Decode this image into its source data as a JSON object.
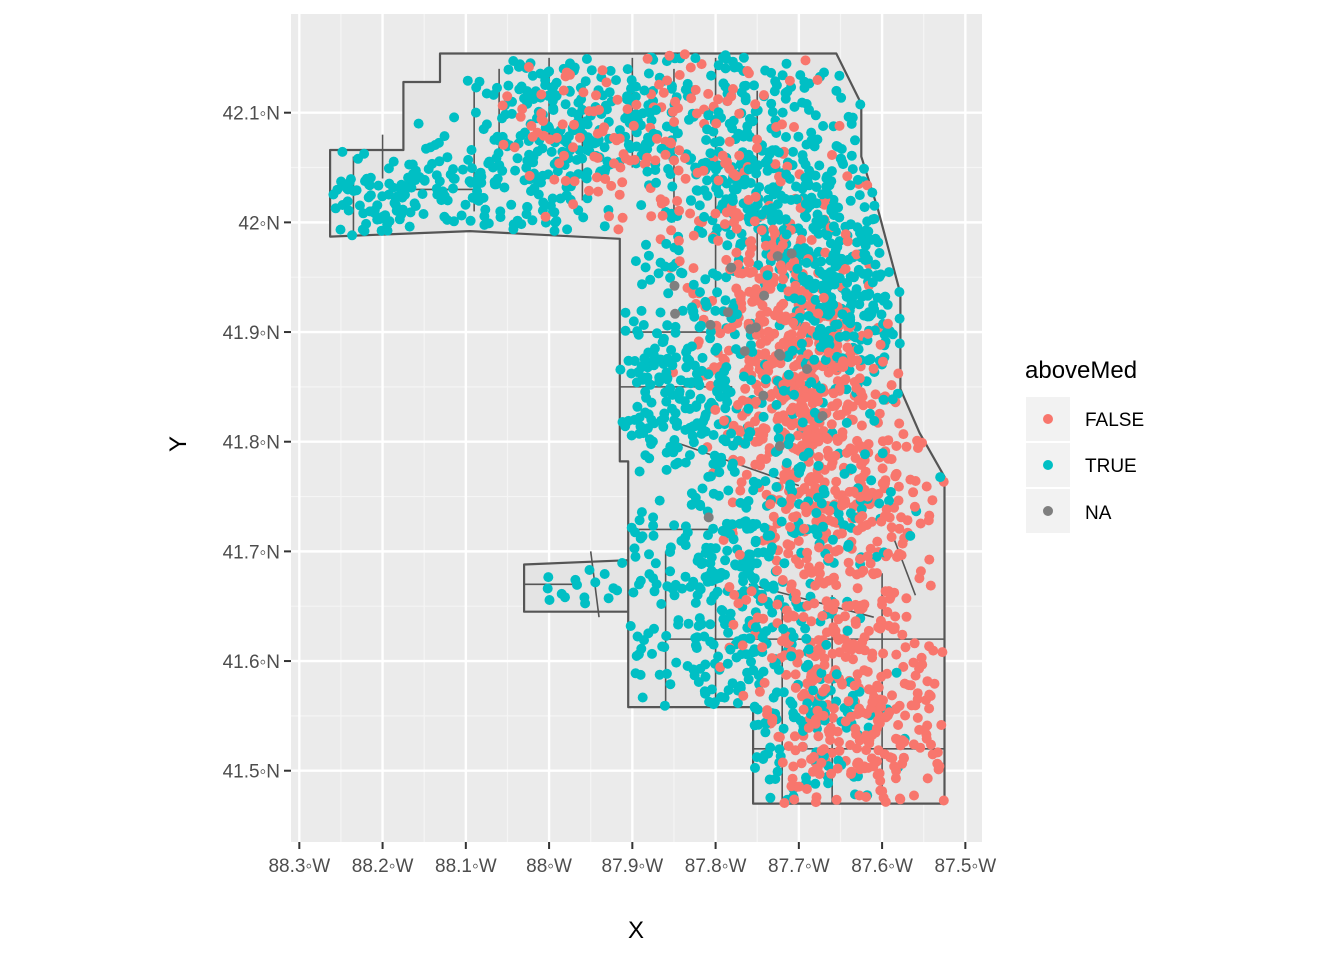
{
  "chart_data": {
    "type": "scatter",
    "title": "",
    "xlabel": "X",
    "ylabel": "Y",
    "xlim": [
      -88.31,
      -87.48
    ],
    "ylim": [
      41.435,
      42.19
    ],
    "x_ticks": [
      {
        "value": -88.3,
        "label": "88.3◦W"
      },
      {
        "value": -88.2,
        "label": "88.2◦W"
      },
      {
        "value": -88.1,
        "label": "88.1◦W"
      },
      {
        "value": -88.0,
        "label": "88◦W"
      },
      {
        "value": -87.9,
        "label": "87.9◦W"
      },
      {
        "value": -87.8,
        "label": "87.8◦W"
      },
      {
        "value": -87.7,
        "label": "87.7◦W"
      },
      {
        "value": -87.6,
        "label": "87.6◦W"
      },
      {
        "value": -87.5,
        "label": "87.5◦W"
      }
    ],
    "y_ticks": [
      {
        "value": 41.5,
        "label": "41.5◦N"
      },
      {
        "value": 41.6,
        "label": "41.6◦N"
      },
      {
        "value": 41.7,
        "label": "41.7◦N"
      },
      {
        "value": 41.8,
        "label": "41.8◦N"
      },
      {
        "value": 41.9,
        "label": "41.9◦N"
      },
      {
        "value": 42.0,
        "label": "42◦N"
      },
      {
        "value": 42.1,
        "label": "42.1◦N"
      }
    ],
    "grid": true,
    "legend": {
      "title": "aboveMed",
      "position": "right",
      "entries": [
        {
          "label": "FALSE",
          "color": "#F8766D"
        },
        {
          "label": "TRUE",
          "color": "#00BFC4"
        },
        {
          "label": "NA",
          "color": "#7F7F7F"
        }
      ]
    },
    "boundary_outline": [
      [
        -88.263,
        42.066
      ],
      [
        -88.175,
        42.066
      ],
      [
        -88.175,
        42.128
      ],
      [
        -88.131,
        42.128
      ],
      [
        -88.131,
        42.154
      ],
      [
        -87.905,
        42.154
      ],
      [
        -87.655,
        42.154
      ],
      [
        -87.625,
        42.108
      ],
      [
        -87.625,
        42.06
      ],
      [
        -87.605,
        42.012
      ],
      [
        -87.578,
        41.935
      ],
      [
        -87.578,
        41.848
      ],
      [
        -87.555,
        41.808
      ],
      [
        -87.525,
        41.768
      ],
      [
        -87.525,
        41.725
      ],
      [
        -87.525,
        41.655
      ],
      [
        -87.525,
        41.575
      ],
      [
        -87.525,
        41.47
      ],
      [
        -87.755,
        41.47
      ],
      [
        -87.755,
        41.558
      ],
      [
        -87.905,
        41.558
      ],
      [
        -87.905,
        41.692
      ],
      [
        -88.03,
        41.688
      ],
      [
        -88.03,
        41.645
      ],
      [
        -87.905,
        41.645
      ],
      [
        -87.905,
        41.782
      ],
      [
        -87.915,
        41.782
      ],
      [
        -87.915,
        41.985
      ],
      [
        -88.095,
        41.992
      ],
      [
        -88.263,
        41.987
      ]
    ],
    "inner_tracts": [
      [
        [
          -88.235,
          42.06
        ],
        [
          -88.235,
          41.99
        ]
      ],
      [
        [
          -88.2,
          42.08
        ],
        [
          -88.2,
          42.04
        ]
      ],
      [
        [
          -88.175,
          42.03
        ],
        [
          -88.09,
          42.03
        ]
      ],
      [
        [
          -88.09,
          42.12
        ],
        [
          -88.09,
          42.01
        ]
      ],
      [
        [
          -88.06,
          42.14
        ],
        [
          -88.06,
          42.05
        ]
      ],
      [
        [
          -88.0,
          42.15
        ],
        [
          -88.0,
          42.08
        ]
      ],
      [
        [
          -87.96,
          42.13
        ],
        [
          -87.96,
          42.02
        ]
      ],
      [
        [
          -87.9,
          42.15
        ],
        [
          -87.9,
          42.05
        ]
      ],
      [
        [
          -87.85,
          42.14
        ],
        [
          -87.85,
          42.0
        ]
      ],
      [
        [
          -87.8,
          42.15
        ],
        [
          -87.8,
          41.93
        ]
      ],
      [
        [
          -87.75,
          42.12
        ],
        [
          -87.75,
          41.96
        ]
      ],
      [
        [
          -87.915,
          41.9
        ],
        [
          -87.8,
          41.9
        ]
      ],
      [
        [
          -87.915,
          41.85
        ],
        [
          -87.78,
          41.85
        ]
      ],
      [
        [
          -87.85,
          41.8
        ],
        [
          -87.7,
          41.76
        ]
      ],
      [
        [
          -87.9,
          41.72
        ],
        [
          -87.8,
          41.72
        ]
      ],
      [
        [
          -87.86,
          41.7
        ],
        [
          -87.86,
          41.56
        ]
      ],
      [
        [
          -87.8,
          41.68
        ],
        [
          -87.8,
          41.56
        ]
      ],
      [
        [
          -87.72,
          41.66
        ],
        [
          -87.72,
          41.47
        ]
      ],
      [
        [
          -87.66,
          41.66
        ],
        [
          -87.66,
          41.47
        ]
      ],
      [
        [
          -87.6,
          41.68
        ],
        [
          -87.6,
          41.47
        ]
      ],
      [
        [
          -87.755,
          41.52
        ],
        [
          -87.525,
          41.52
        ]
      ],
      [
        [
          -87.86,
          41.62
        ],
        [
          -87.525,
          41.62
        ]
      ],
      [
        [
          -87.76,
          41.67
        ],
        [
          -87.61,
          41.64
        ]
      ],
      [
        [
          -87.59,
          41.72
        ],
        [
          -87.56,
          41.66
        ]
      ],
      [
        [
          -88.03,
          41.67
        ],
        [
          -87.97,
          41.67
        ]
      ],
      [
        [
          -87.95,
          41.7
        ],
        [
          -87.94,
          41.64
        ]
      ]
    ],
    "scatter_summary": {
      "series": [
        {
          "name": "FALSE",
          "color": "#F8766D"
        },
        {
          "name": "TRUE",
          "color": "#00BFC4"
        },
        {
          "name": "NA",
          "color": "#7F7F7F"
        }
      ],
      "clusters": [
        {
          "series": "TRUE",
          "center": [
            -88.2,
            42.02
          ],
          "spread": [
            0.06,
            0.025
          ],
          "n": 90
        },
        {
          "series": "TRUE",
          "center": [
            -88.07,
            42.03
          ],
          "spread": [
            0.07,
            0.03
          ],
          "n": 110
        },
        {
          "series": "TRUE",
          "center": [
            -87.95,
            42.1
          ],
          "spread": [
            0.07,
            0.04
          ],
          "n": 220
        },
        {
          "series": "FALSE",
          "center": [
            -87.93,
            42.09
          ],
          "spread": [
            0.06,
            0.04
          ],
          "n": 90
        },
        {
          "series": "TRUE",
          "center": [
            -87.75,
            42.06
          ],
          "spread": [
            0.08,
            0.06
          ],
          "n": 260
        },
        {
          "series": "FALSE",
          "center": [
            -87.76,
            42.05
          ],
          "spread": [
            0.07,
            0.06
          ],
          "n": 110
        },
        {
          "series": "TRUE",
          "center": [
            -87.68,
            41.97
          ],
          "spread": [
            0.06,
            0.05
          ],
          "n": 220
        },
        {
          "series": "FALSE",
          "center": [
            -87.72,
            41.9
          ],
          "spread": [
            0.05,
            0.05
          ],
          "n": 300
        },
        {
          "series": "TRUE",
          "center": [
            -87.64,
            41.92
          ],
          "spread": [
            0.04,
            0.05
          ],
          "n": 150
        },
        {
          "series": "TRUE",
          "center": [
            -87.85,
            41.86
          ],
          "spread": [
            0.05,
            0.05
          ],
          "n": 200
        },
        {
          "series": "FALSE",
          "center": [
            -87.66,
            41.79
          ],
          "spread": [
            0.06,
            0.05
          ],
          "n": 320
        },
        {
          "series": "TRUE",
          "center": [
            -87.72,
            41.76
          ],
          "spread": [
            0.07,
            0.05
          ],
          "n": 160
        },
        {
          "series": "TRUE",
          "center": [
            -87.79,
            41.66
          ],
          "spread": [
            0.07,
            0.05
          ],
          "n": 220
        },
        {
          "series": "FALSE",
          "center": [
            -87.65,
            41.63
          ],
          "spread": [
            0.06,
            0.06
          ],
          "n": 260
        },
        {
          "series": "TRUE",
          "center": [
            -87.72,
            41.55
          ],
          "spread": [
            0.06,
            0.04
          ],
          "n": 130
        },
        {
          "series": "FALSE",
          "center": [
            -87.62,
            41.52
          ],
          "spread": [
            0.06,
            0.04
          ],
          "n": 150
        },
        {
          "series": "TRUE",
          "center": [
            -87.97,
            41.665
          ],
          "spread": [
            0.04,
            0.015
          ],
          "n": 12
        },
        {
          "series": "NA",
          "center": [
            -87.75,
            41.87
          ],
          "spread": [
            0.06,
            0.06
          ],
          "n": 18
        }
      ]
    }
  }
}
